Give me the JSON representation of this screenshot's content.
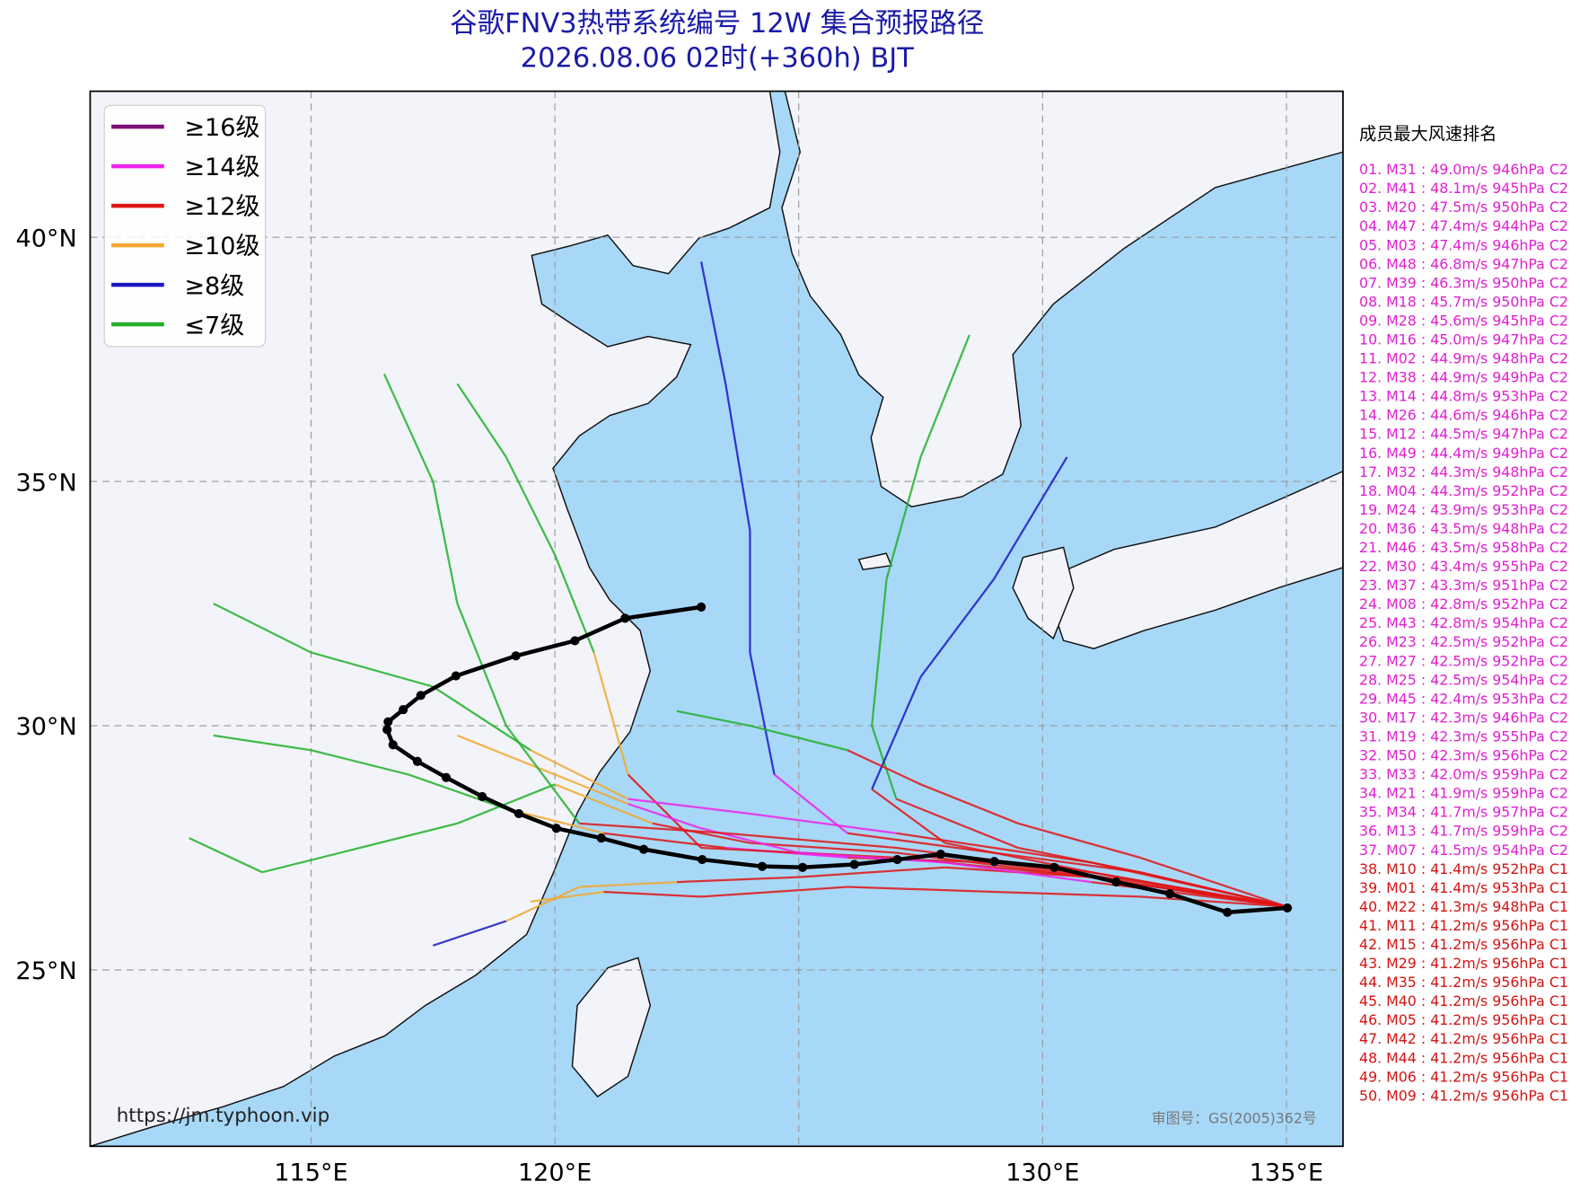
{
  "header": {
    "title": "谷歌FNV3热带系统编号 12W 集合预报路径",
    "subtitle": "2026.08.06 02时(+360h) BJT"
  },
  "map": {
    "lon_range": [
      110.47,
      136.16
    ],
    "lat_range": [
      21.39,
      42.99
    ],
    "lon_ticks": [
      {
        "value": 115,
        "label": "115°E"
      },
      {
        "value": 120,
        "label": "120°E"
      },
      {
        "value": 125,
        "label": null
      },
      {
        "value": 130,
        "label": "130°E"
      },
      {
        "value": 135,
        "label": "135°E"
      }
    ],
    "lat_ticks": [
      {
        "value": 25,
        "label": "25°N"
      },
      {
        "value": 30,
        "label": "30°N"
      },
      {
        "value": 35,
        "label": "35°N"
      },
      {
        "value": 40,
        "label": "40°N"
      }
    ],
    "grid": true
  },
  "legend": {
    "items": [
      {
        "name": "≥16级",
        "color": "#7a0f74"
      },
      {
        "name": "≥14级",
        "color": "#ee22ee"
      },
      {
        "name": "≥12级",
        "color": "#e01515"
      },
      {
        "name": "≥10级",
        "color": "#f2a830"
      },
      {
        "name": "≥8级",
        "color": "#1a1ac4"
      },
      {
        "name": "≤7级",
        "color": "#22b02a"
      }
    ]
  },
  "mean_track": {
    "color": "#000000",
    "lon": [
      135.02,
      133.79,
      132.61,
      131.51,
      130.24,
      129.01,
      127.91,
      127.02,
      126.14,
      125.08,
      124.25,
      123.02,
      121.82,
      120.95,
      120.03,
      119.26,
      118.51,
      117.77,
      117.18,
      116.68,
      116.56,
      116.58,
      116.89,
      117.25,
      117.97,
      119.2,
      120.41,
      121.44,
      123.0
    ],
    "lat": [
      26.27,
      26.18,
      26.56,
      26.8,
      27.1,
      27.22,
      27.37,
      27.26,
      27.16,
      27.1,
      27.12,
      27.26,
      27.47,
      27.7,
      27.9,
      28.2,
      28.55,
      28.94,
      29.27,
      29.61,
      29.92,
      30.08,
      30.33,
      30.62,
      31.02,
      31.43,
      31.74,
      32.2,
      32.43
    ]
  },
  "member_tracks": [
    {
      "lon": [
        135,
        132,
        129,
        126,
        123.5,
        121,
        119,
        117,
        115,
        113
      ],
      "lat": [
        26.3,
        26.8,
        27.2,
        27.3,
        27.5,
        27.8,
        28.3,
        29,
        29.5,
        29.8
      ],
      "cat": [
        2,
        2,
        2,
        1,
        2,
        3,
        5,
        5,
        5,
        5
      ]
    },
    {
      "lon": [
        135,
        132,
        129.5,
        127,
        126.5,
        126.8,
        127.5,
        128.5
      ],
      "lat": [
        26.3,
        27,
        27.5,
        28.5,
        30,
        33,
        35.5,
        38
      ],
      "cat": [
        2,
        2,
        2,
        5,
        5,
        5,
        5,
        5
      ]
    },
    {
      "lon": [
        135,
        132,
        129,
        126,
        124.5,
        124,
        124,
        123.5,
        123
      ],
      "lat": [
        26.3,
        27,
        27.4,
        27.8,
        29,
        31.5,
        34,
        37,
        39.5
      ],
      "cat": [
        2,
        2,
        2,
        1,
        4,
        4,
        4,
        4,
        4
      ]
    },
    {
      "lon": [
        135,
        131,
        128,
        125,
        122.5,
        120.5,
        119,
        117.5
      ],
      "lat": [
        26.3,
        26.9,
        27.1,
        26.9,
        26.8,
        26.7,
        26,
        25.5
      ],
      "cat": [
        2,
        2,
        2,
        2,
        3,
        3,
        4,
        4
      ]
    },
    {
      "lon": [
        135,
        131,
        127,
        123,
        121.5,
        120.8,
        120,
        119,
        118
      ],
      "lat": [
        26.3,
        26.9,
        27.3,
        27.5,
        29,
        31.5,
        33.5,
        35.5,
        37
      ],
      "cat": [
        2,
        2,
        2,
        2,
        3,
        5,
        5,
        5,
        5
      ]
    },
    {
      "lon": [
        135,
        131,
        128,
        126.5,
        127.5,
        129,
        130.5
      ],
      "lat": [
        26.3,
        27,
        27.6,
        28.7,
        31,
        33,
        35.5
      ],
      "cat": [
        2,
        2,
        2,
        4,
        4,
        4,
        4
      ]
    },
    {
      "lon": [
        135,
        131,
        127,
        124,
        121.5,
        119.5,
        117.5,
        115,
        113
      ],
      "lat": [
        26.3,
        27.2,
        27.8,
        28.2,
        28.5,
        29.5,
        30.8,
        31.5,
        32.5
      ],
      "cat": [
        2,
        2,
        1,
        1,
        3,
        5,
        5,
        5,
        5
      ]
    },
    {
      "lon": [
        135,
        132,
        129,
        126,
        123,
        121,
        119.5
      ],
      "lat": [
        26.3,
        26.5,
        26.6,
        26.7,
        26.5,
        26.6,
        26.4
      ],
      "cat": [
        2,
        2,
        2,
        2,
        2,
        3,
        3
      ]
    },
    {
      "lon": [
        135,
        131,
        127,
        124,
        122,
        120,
        118,
        116,
        114,
        112.5
      ],
      "lat": [
        26.3,
        26.9,
        27.4,
        27.6,
        28,
        28.8,
        28,
        27.5,
        27,
        27.7
      ],
      "cat": [
        2,
        2,
        2,
        2,
        3,
        5,
        5,
        5,
        5,
        5
      ]
    },
    {
      "lon": [
        135,
        132,
        129.5,
        127.5,
        126,
        124,
        122.5
      ],
      "lat": [
        26.3,
        27.3,
        28,
        28.8,
        29.5,
        30,
        30.3
      ],
      "cat": [
        2,
        2,
        2,
        2,
        5,
        5,
        5
      ]
    },
    {
      "lon": [
        135,
        131,
        128,
        125,
        123,
        121.5,
        120,
        118
      ],
      "lat": [
        26.3,
        26.8,
        27.2,
        27.4,
        27.9,
        28.4,
        29,
        29.8
      ],
      "cat": [
        2,
        1,
        1,
        1,
        1,
        3,
        3,
        5
      ]
    },
    {
      "lon": [
        135,
        131,
        127,
        123.5,
        120.5,
        119,
        118,
        117.5,
        116.5
      ],
      "lat": [
        26.3,
        27,
        27.5,
        27.8,
        28,
        30,
        32.5,
        35,
        37.2
      ],
      "cat": [
        2,
        2,
        2,
        2,
        5,
        5,
        5,
        5,
        5
      ]
    }
  ],
  "ranking": {
    "title": "成员最大风速排名",
    "entries": [
      {
        "text": "01. M31 : 49.0m/s 946hPa C2",
        "color": "#e020d0"
      },
      {
        "text": "02. M41 : 48.1m/s 945hPa C2",
        "color": "#e020d0"
      },
      {
        "text": "03. M20 : 47.5m/s 950hPa C2",
        "color": "#e020d0"
      },
      {
        "text": "04. M47 : 47.4m/s 944hPa C2",
        "color": "#e020d0"
      },
      {
        "text": "05. M03 : 47.4m/s 946hPa C2",
        "color": "#e020d0"
      },
      {
        "text": "06. M48 : 46.8m/s 947hPa C2",
        "color": "#e020d0"
      },
      {
        "text": "07. M39 : 46.3m/s 950hPa C2",
        "color": "#e020d0"
      },
      {
        "text": "08. M18 : 45.7m/s 950hPa C2",
        "color": "#e020d0"
      },
      {
        "text": "09. M28 : 45.6m/s 945hPa C2",
        "color": "#e020d0"
      },
      {
        "text": "10. M16 : 45.0m/s 947hPa C2",
        "color": "#e020d0"
      },
      {
        "text": "11. M02 : 44.9m/s 948hPa C2",
        "color": "#e020d0"
      },
      {
        "text": "12. M38 : 44.9m/s 949hPa C2",
        "color": "#e020d0"
      },
      {
        "text": "13. M14 : 44.8m/s 953hPa C2",
        "color": "#e020d0"
      },
      {
        "text": "14. M26 : 44.6m/s 946hPa C2",
        "color": "#e020d0"
      },
      {
        "text": "15. M12 : 44.5m/s 947hPa C2",
        "color": "#e020d0"
      },
      {
        "text": "16. M49 : 44.4m/s 949hPa C2",
        "color": "#e020d0"
      },
      {
        "text": "17. M32 : 44.3m/s 948hPa C2",
        "color": "#e020d0"
      },
      {
        "text": "18. M04 : 44.3m/s 952hPa C2",
        "color": "#e020d0"
      },
      {
        "text": "19. M24 : 43.9m/s 953hPa C2",
        "color": "#e020d0"
      },
      {
        "text": "20. M36 : 43.5m/s 948hPa C2",
        "color": "#e020d0"
      },
      {
        "text": "21. M46 : 43.5m/s 958hPa C2",
        "color": "#e020d0"
      },
      {
        "text": "22. M30 : 43.4m/s 955hPa C2",
        "color": "#e020d0"
      },
      {
        "text": "23. M37 : 43.3m/s 951hPa C2",
        "color": "#e020d0"
      },
      {
        "text": "24. M08 : 42.8m/s 952hPa C2",
        "color": "#e020d0"
      },
      {
        "text": "25. M43 : 42.8m/s 954hPa C2",
        "color": "#e020d0"
      },
      {
        "text": "26. M23 : 42.5m/s 952hPa C2",
        "color": "#e020d0"
      },
      {
        "text": "27. M27 : 42.5m/s 952hPa C2",
        "color": "#e020d0"
      },
      {
        "text": "28. M25 : 42.5m/s 954hPa C2",
        "color": "#e020d0"
      },
      {
        "text": "29. M45 : 42.4m/s 953hPa C2",
        "color": "#e020d0"
      },
      {
        "text": "30. M17 : 42.3m/s 946hPa C2",
        "color": "#e020d0"
      },
      {
        "text": "31. M19 : 42.3m/s 955hPa C2",
        "color": "#e020d0"
      },
      {
        "text": "32. M50 : 42.3m/s 956hPa C2",
        "color": "#e020d0"
      },
      {
        "text": "33. M33 : 42.0m/s 959hPa C2",
        "color": "#e020d0"
      },
      {
        "text": "34. M21 : 41.9m/s 959hPa C2",
        "color": "#e020d0"
      },
      {
        "text": "35. M34 : 41.7m/s 957hPa C2",
        "color": "#e020d0"
      },
      {
        "text": "36. M13 : 41.7m/s 959hPa C2",
        "color": "#e020d0"
      },
      {
        "text": "37. M07 : 41.5m/s 954hPa C2",
        "color": "#e020d0"
      },
      {
        "text": "38. M10 : 41.4m/s 952hPa C1",
        "color": "#d41414"
      },
      {
        "text": "39. M01 : 41.4m/s 953hPa C1",
        "color": "#d41414"
      },
      {
        "text": "40. M22 : 41.3m/s 948hPa C1",
        "color": "#d41414"
      },
      {
        "text": "41. M11 : 41.2m/s 956hPa C1",
        "color": "#d41414"
      },
      {
        "text": "42. M15 : 41.2m/s 956hPa C1",
        "color": "#d41414"
      },
      {
        "text": "43. M29 : 41.2m/s 956hPa C1",
        "color": "#d41414"
      },
      {
        "text": "44. M35 : 41.2m/s 956hPa C1",
        "color": "#d41414"
      },
      {
        "text": "45. M40 : 41.2m/s 956hPa C1",
        "color": "#d41414"
      },
      {
        "text": "46. M05 : 41.2m/s 956hPa C1",
        "color": "#d41414"
      },
      {
        "text": "47. M42 : 41.2m/s 956hPa C1",
        "color": "#d41414"
      },
      {
        "text": "48. M44 : 41.2m/s 956hPa C1",
        "color": "#d41414"
      },
      {
        "text": "49. M06 : 41.2m/s 956hPa C1",
        "color": "#d41414"
      },
      {
        "text": "50. M09 : 41.2m/s 956hPa C1",
        "color": "#d41414"
      }
    ]
  },
  "footer": {
    "url": "https://jm.typhoon.vip",
    "approval": "审图号：GS(2005)362号"
  }
}
